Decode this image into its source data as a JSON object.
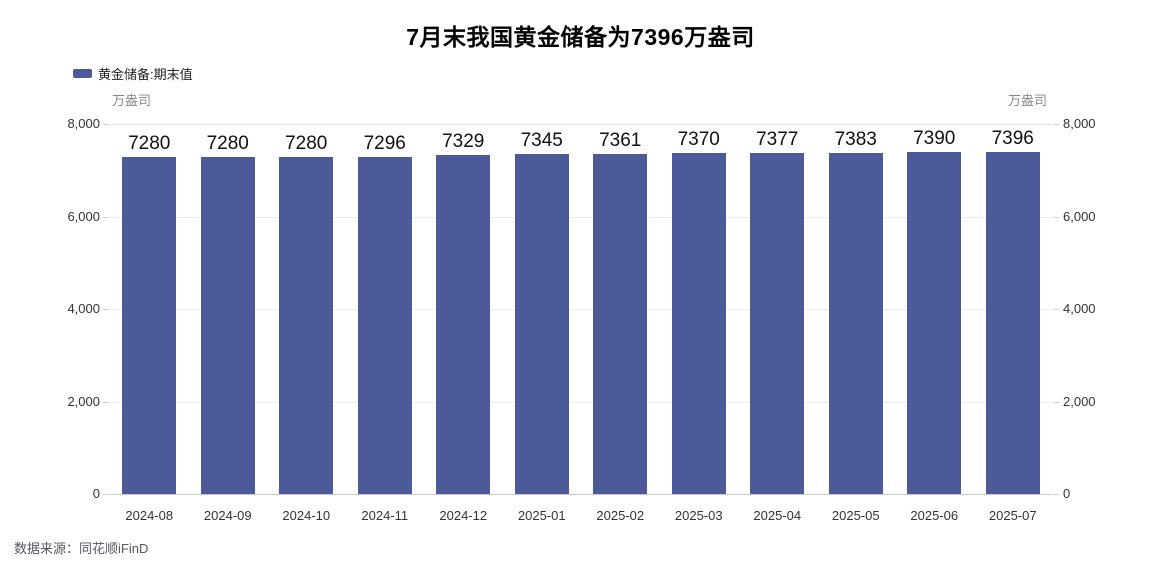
{
  "title": "7月末我国黄金储备为7396万盎司",
  "legend": {
    "label": "黄金储备:期末值",
    "swatch_color": "#4d5a9a"
  },
  "y_axis": {
    "unit": "万盎司"
  },
  "source": "数据来源：同花顺iFinD",
  "colors": {
    "bar": "#4d5a9a",
    "grid": "#ececf1",
    "axis_line": "#c9c9cf"
  },
  "chart_data": {
    "type": "bar",
    "title": "7月末我国黄金储备为7396万盎司",
    "series_name": "黄金储备:期末值",
    "categories": [
      "2024-08",
      "2024-09",
      "2024-10",
      "2024-11",
      "2024-12",
      "2025-01",
      "2025-02",
      "2025-03",
      "2025-04",
      "2025-05",
      "2025-06",
      "2025-07"
    ],
    "values": [
      7280,
      7280,
      7280,
      7296,
      7329,
      7345,
      7361,
      7370,
      7377,
      7383,
      7390,
      7396
    ],
    "data_labels": [
      "7280",
      "7280",
      "7280",
      "7296",
      "7329",
      "7345",
      "7361",
      "7370",
      "7377",
      "7383",
      "7390",
      "7396"
    ],
    "xlabel": "",
    "ylabel": "万盎司",
    "ylim": [
      0,
      8000
    ],
    "yticks": [
      0,
      2000,
      4000,
      6000,
      8000
    ],
    "ytick_labels": [
      "0",
      "2,000",
      "4,000",
      "6,000",
      "8,000"
    ],
    "dual_y_axis": true,
    "grid": true,
    "legend_position": "top-left",
    "bar_color": "#4d5a9a",
    "source_note": "数据来源：同花顺iFinD"
  }
}
